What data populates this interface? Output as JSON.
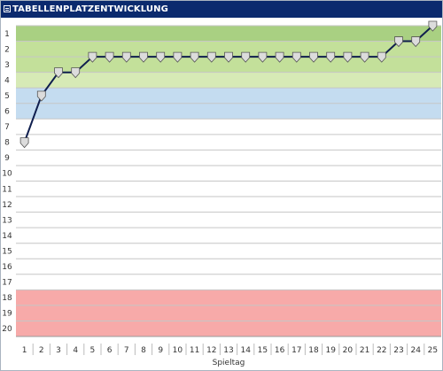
{
  "widget": {
    "title": "TABELLENPLATZENTWICKLUNG"
  },
  "chart_data": {
    "type": "line",
    "title": "TABELLENPLATZENTWICKLUNG",
    "xlabel": "Spieltag",
    "ylabel": "",
    "x": [
      1,
      2,
      3,
      4,
      5,
      6,
      7,
      8,
      9,
      10,
      11,
      12,
      13,
      14,
      15,
      16,
      17,
      18,
      19,
      20,
      21,
      22,
      23,
      24,
      25
    ],
    "xticks": [
      "1",
      "2",
      "3",
      "4",
      "5",
      "6",
      "7",
      "8",
      "9",
      "10",
      "11",
      "12",
      "13",
      "14",
      "15",
      "16",
      "17",
      "18",
      "19",
      "20",
      "21",
      "22",
      "23",
      "24",
      "25"
    ],
    "yticks": [
      "1",
      "2",
      "3",
      "4",
      "5",
      "6",
      "7",
      "8",
      "9",
      "10",
      "11",
      "12",
      "13",
      "14",
      "15",
      "16",
      "17",
      "18",
      "19",
      "20"
    ],
    "ylim": [
      0.5,
      20.5
    ],
    "y_inverted": true,
    "grid": true,
    "series": [
      {
        "values": [
          8,
          5,
          3.5,
          3.5,
          2.5,
          2.5,
          2.5,
          2.5,
          2.5,
          2.5,
          2.5,
          2.5,
          2.5,
          2.5,
          2.5,
          2.5,
          2.5,
          2.5,
          2.5,
          2.5,
          2.5,
          2.5,
          1.5,
          1.5,
          0.5
        ]
      }
    ],
    "zones": [
      {
        "from": 1,
        "to": 1,
        "color": "#a9d082"
      },
      {
        "from": 2,
        "to": 3,
        "color": "#c3e09a"
      },
      {
        "from": 4,
        "to": 4,
        "color": "#d7eab6"
      },
      {
        "from": 5,
        "to": 6,
        "color": "#c4dcf0"
      },
      {
        "from": 18,
        "to": 20,
        "color": "#f7aaa9"
      }
    ],
    "colors": {
      "line": "#0f1e4e",
      "grid": "#c6c6c6",
      "marker_fill": "#dcdcdc"
    }
  }
}
